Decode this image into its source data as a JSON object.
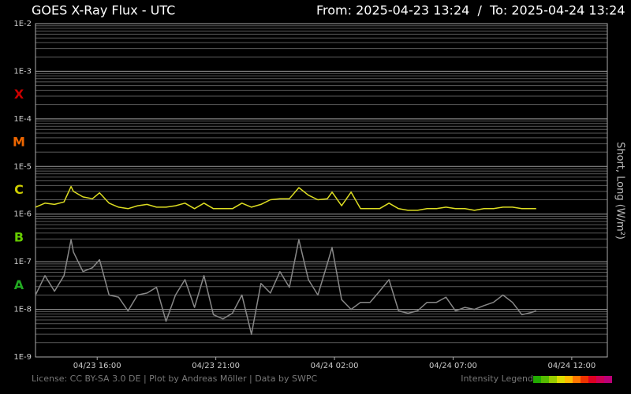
{
  "chart_data": {
    "type": "line",
    "title": "GOES X-Ray Flux - UTC",
    "subtitle": "From: 2025-04-23 13:24  /  To: 2025-04-24 13:24",
    "y_label": "Short, Long (W/m²)",
    "yscale": "log",
    "grid": true,
    "xlim": [
      13.4,
      37.5
    ],
    "xticks": [
      {
        "value": 16,
        "label": "04/23 16:00"
      },
      {
        "value": 21,
        "label": "04/23 21:00"
      },
      {
        "value": 26,
        "label": "04/24 02:00"
      },
      {
        "value": 31,
        "label": "04/24 07:00"
      },
      {
        "value": 36,
        "label": "04/24 12:00"
      }
    ],
    "ylim": [
      1e-09,
      0.01
    ],
    "yticks": [
      {
        "value": 1e-09,
        "label": "1E-9"
      },
      {
        "value": 1e-08,
        "label": "1E-8"
      },
      {
        "value": 1e-07,
        "label": "1E-7"
      },
      {
        "value": 1e-06,
        "label": "1E-6"
      },
      {
        "value": 1e-05,
        "label": "1E-5"
      },
      {
        "value": 0.0001,
        "label": "1E-4"
      },
      {
        "value": 0.001,
        "label": "1E-3"
      },
      {
        "value": 0.01,
        "label": "1E-2"
      }
    ],
    "classes": [
      {
        "label": "A",
        "min": 1e-08,
        "color": "#22aa22"
      },
      {
        "label": "B",
        "min": 1e-07,
        "color": "#66cc00"
      },
      {
        "label": "C",
        "min": 1e-06,
        "color": "#cccc00"
      },
      {
        "label": "M",
        "min": 1e-05,
        "color": "#ee6600"
      },
      {
        "label": "X",
        "min": 0.0001,
        "color": "#cc0000"
      }
    ],
    "x": [
      13.4,
      13.8,
      14.2,
      14.6,
      14.9,
      15.0,
      15.4,
      15.8,
      16.1,
      16.5,
      16.9,
      17.3,
      17.7,
      18.1,
      18.5,
      18.9,
      19.3,
      19.7,
      20.1,
      20.5,
      20.9,
      21.3,
      21.7,
      22.1,
      22.5,
      22.9,
      23.3,
      23.7,
      24.1,
      24.5,
      24.9,
      25.3,
      25.7,
      25.9,
      26.3,
      26.7,
      27.1,
      27.5,
      27.9,
      28.3,
      28.7,
      29.1,
      29.5,
      29.9,
      30.3,
      30.7,
      31.1,
      31.5,
      31.9,
      32.3,
      32.7,
      33.1,
      33.5,
      33.9,
      34.3,
      34.5
    ],
    "series": [
      {
        "color": "#dddd22",
        "values": [
          1.4e-06,
          1.7e-06,
          1.6e-06,
          1.8e-06,
          3.8e-06,
          3e-06,
          2.3e-06,
          2.1e-06,
          2.8e-06,
          1.7e-06,
          1.4e-06,
          1.3e-06,
          1.5e-06,
          1.6e-06,
          1.4e-06,
          1.4e-06,
          1.5e-06,
          1.7e-06,
          1.3e-06,
          1.7e-06,
          1.3e-06,
          1.3e-06,
          1.3e-06,
          1.7e-06,
          1.4e-06,
          1.6e-06,
          2e-06,
          2.1e-06,
          2.1e-06,
          3.6e-06,
          2.5e-06,
          2e-06,
          2.1e-06,
          2.9e-06,
          1.5e-06,
          2.9e-06,
          1.3e-06,
          1.3e-06,
          1.3e-06,
          1.7e-06,
          1.3e-06,
          1.2e-06,
          1.2e-06,
          1.3e-06,
          1.3e-06,
          1.4e-06,
          1.3e-06,
          1.3e-06,
          1.2e-06,
          1.3e-06,
          1.3e-06,
          1.4e-06,
          1.4e-06,
          1.3e-06,
          1.3e-06,
          1.3e-06
        ]
      },
      {
        "color": "#888888",
        "values": [
          2e-08,
          5.1e-08,
          2.4e-08,
          5.1e-08,
          2.9e-07,
          1.6e-07,
          6.2e-08,
          7.5e-08,
          1.1e-07,
          2e-08,
          1.8e-08,
          9.3e-09,
          2e-08,
          2.2e-08,
          2.9e-08,
          5.6e-09,
          2e-08,
          4.2e-08,
          1.1e-08,
          5.1e-08,
          7.7e-09,
          6.3e-09,
          8.3e-09,
          2e-08,
          3e-09,
          3.5e-08,
          2.2e-08,
          6.2e-08,
          2.9e-08,
          2.9e-07,
          4.2e-08,
          2e-08,
          9.1e-08,
          2e-07,
          1.6e-08,
          1e-08,
          1.4e-08,
          1.4e-08,
          2.4e-08,
          4.2e-08,
          9.3e-09,
          8.3e-09,
          9.3e-09,
          1.4e-08,
          1.4e-08,
          1.8e-08,
          9.3e-09,
          1.1e-08,
          1e-08,
          1.2e-08,
          1.4e-08,
          2e-08,
          1.4e-08,
          7.7e-09,
          8.6e-09,
          9.3e-09
        ]
      }
    ],
    "footer": "License: CC BY-SA 3.0 DE | Plot by Andreas Möller | Data by SWPC",
    "intensity_legend": {
      "label": "Intensity Legend",
      "colors": [
        "#22aa00",
        "#55bb00",
        "#99cc00",
        "#dddd00",
        "#ffbb00",
        "#ff7700",
        "#ee3300",
        "#dd0022",
        "#cc0055",
        "#bb0077"
      ]
    }
  }
}
